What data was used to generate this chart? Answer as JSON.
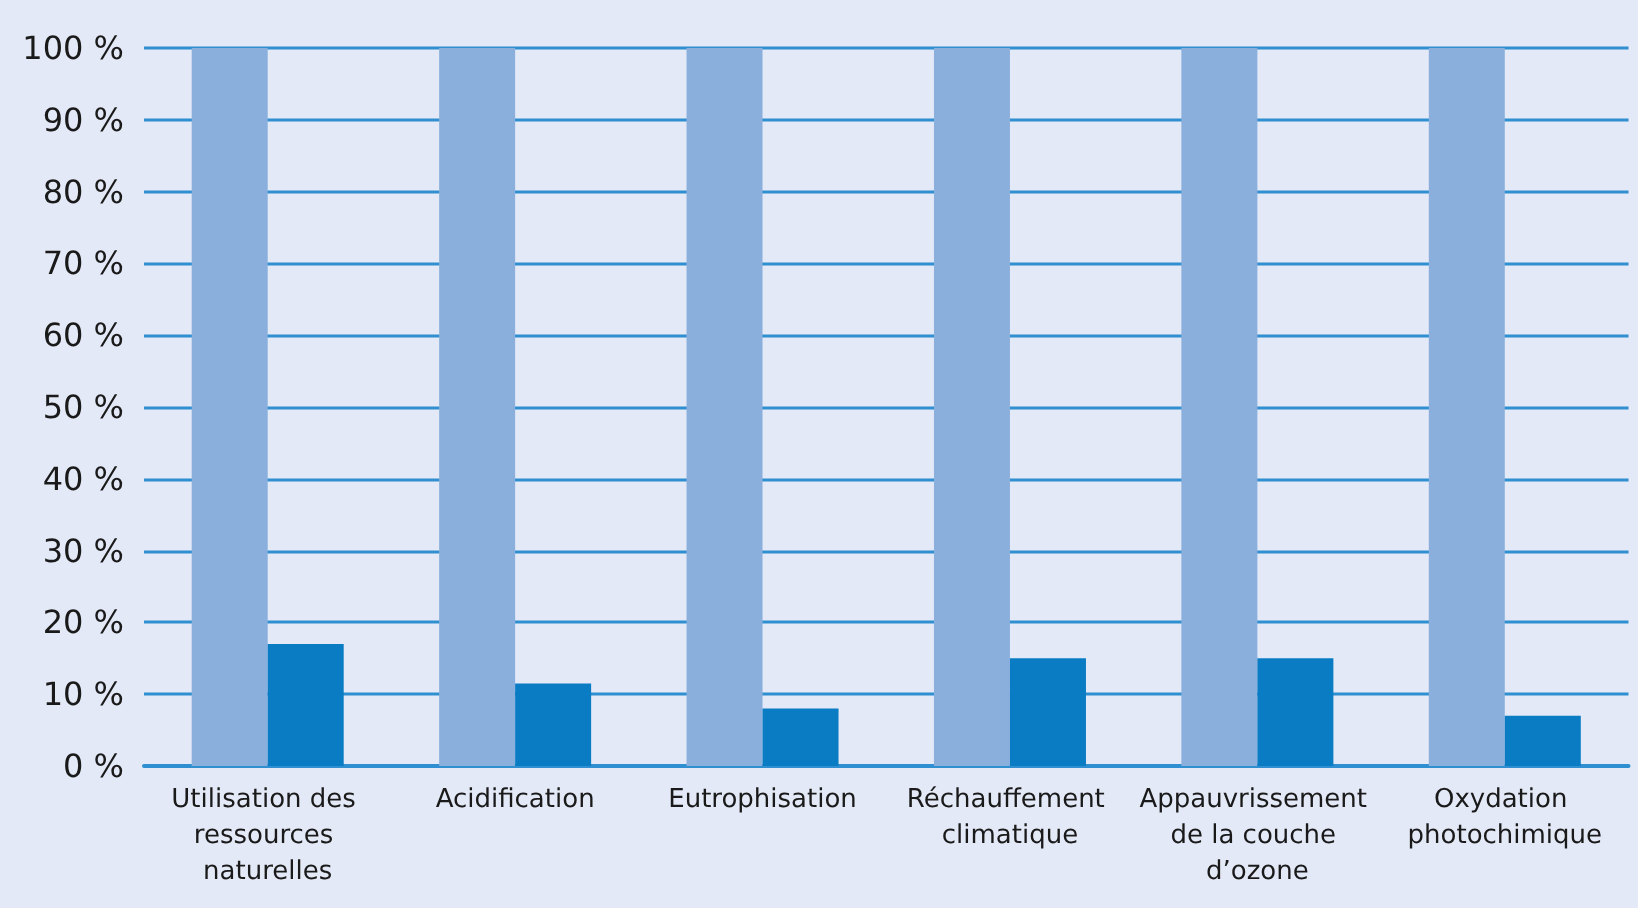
{
  "chart_data": {
    "type": "bar",
    "categories": [
      "Utilisation des ressources naturelles",
      "Acidification",
      "Eutrophisation",
      "Réchauffement climatique",
      "Appauvrissement de la couche d’ozone",
      "Oxydation photochimique"
    ],
    "series": [
      {
        "color": "#8aafdd",
        "values": [
          100,
          100,
          100,
          100,
          100,
          100
        ]
      },
      {
        "color": "#0a7cc4",
        "values": [
          17,
          11.5,
          8,
          15,
          15,
          7
        ]
      }
    ],
    "ylim": [
      0,
      100
    ],
    "yticks": [
      {
        "value": 0,
        "label": "0 %"
      },
      {
        "value": 10,
        "label": "10 %"
      },
      {
        "value": 20,
        "label": "20 %"
      },
      {
        "value": 30,
        "label": "30 %"
      },
      {
        "value": 40,
        "label": "40 %"
      },
      {
        "value": 50,
        "label": "50 %"
      },
      {
        "value": 60,
        "label": "60 %"
      },
      {
        "value": 70,
        "label": "70 %"
      },
      {
        "value": 80,
        "label": "80 %"
      },
      {
        "value": 90,
        "label": "90 %"
      },
      {
        "value": 100,
        "label": "100 %"
      }
    ],
    "grid": "y"
  }
}
